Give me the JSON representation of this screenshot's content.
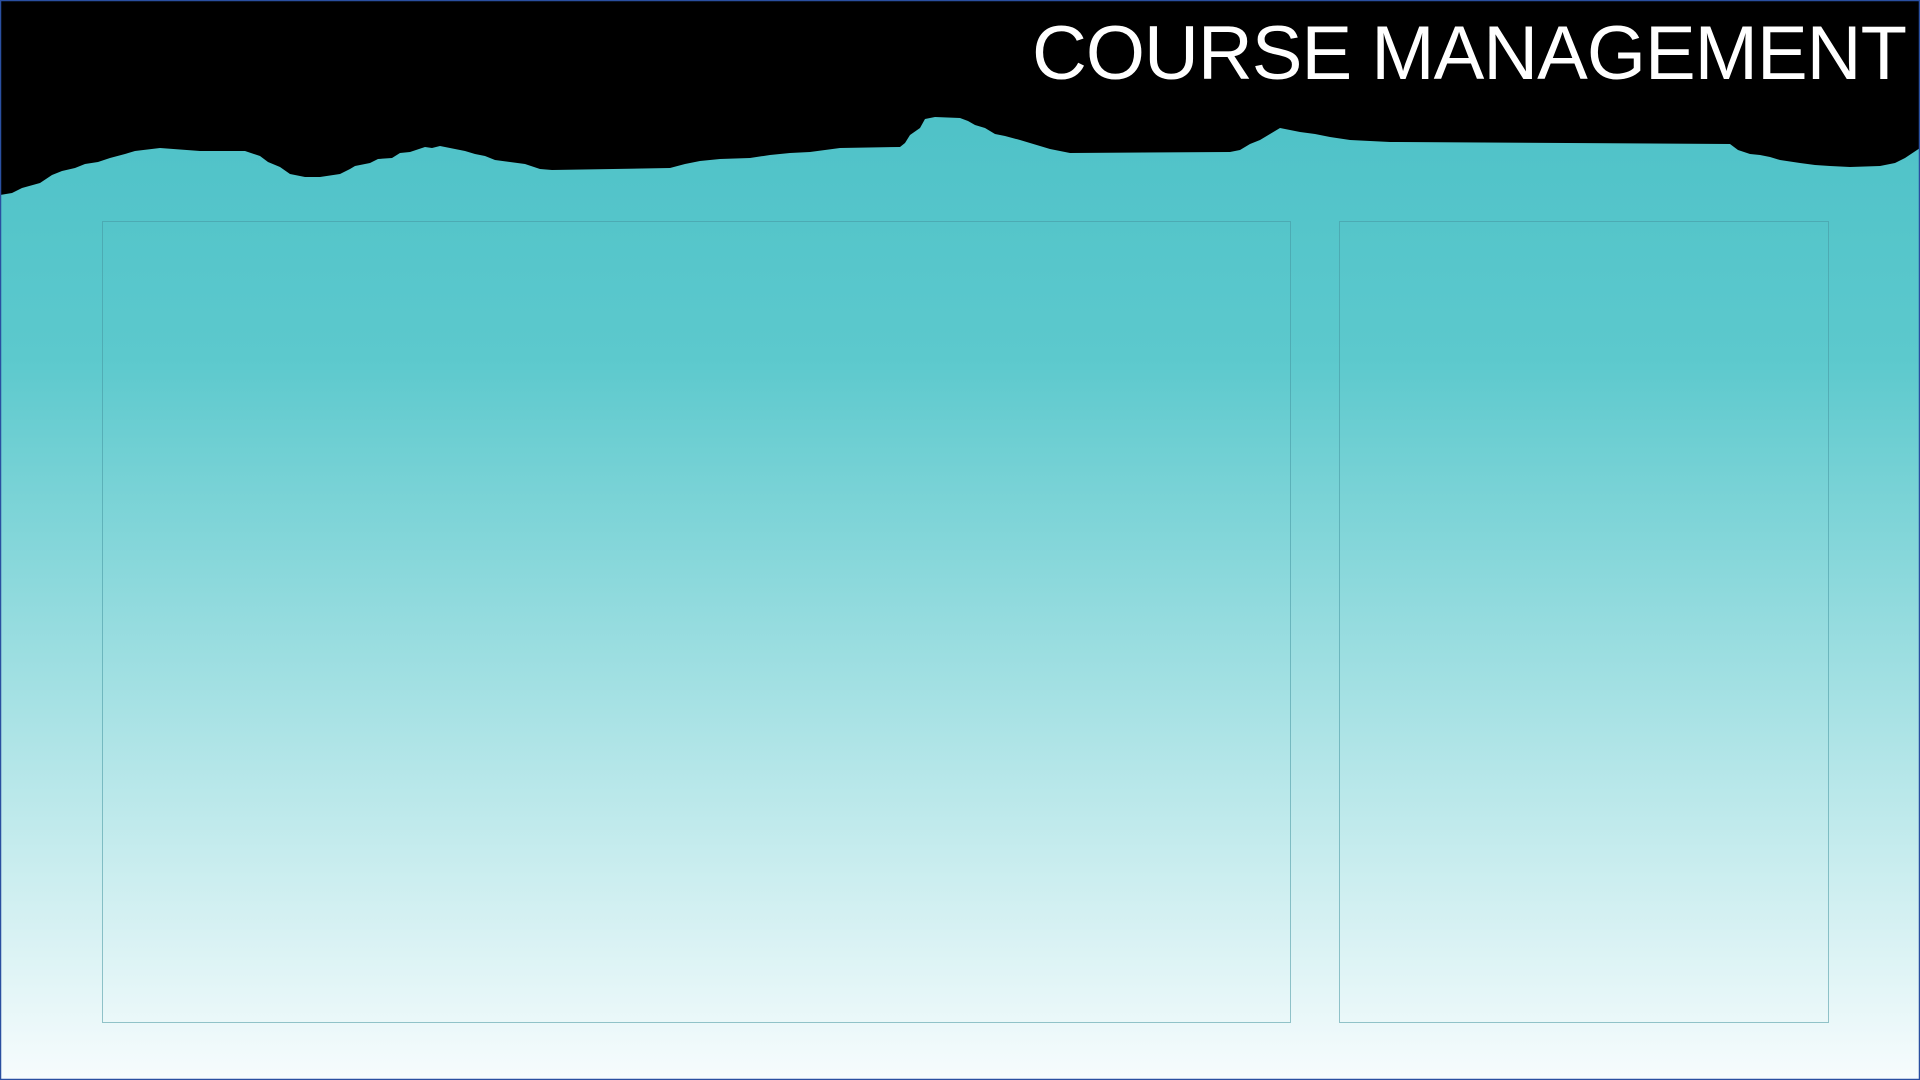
{
  "header": {
    "title": "COURSE MANAGEMENT"
  },
  "colors": {
    "header_background": "#000000",
    "title_text": "#ffffff",
    "gradient_top": "#4fc2c8",
    "gradient_bottom": "#f7fcfd",
    "frame_border": "#2a4fa0"
  }
}
